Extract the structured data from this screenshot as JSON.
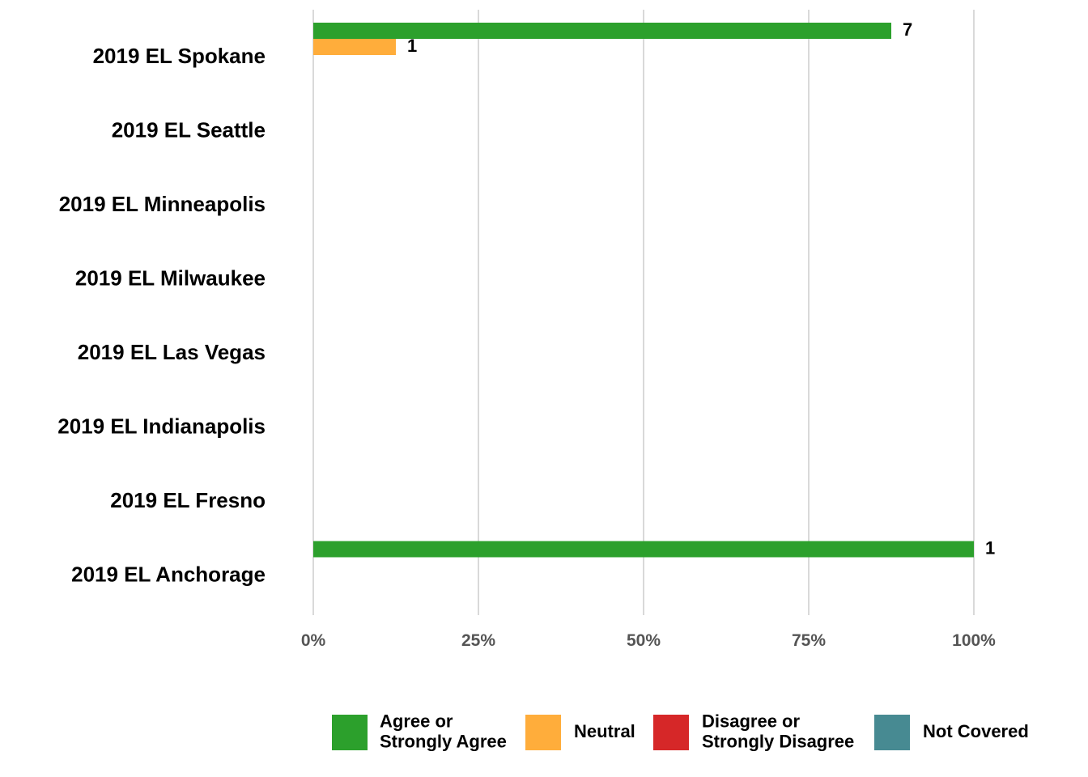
{
  "chart_data": {
    "type": "bar",
    "orientation": "horizontal",
    "stacking": "grouped",
    "title": "",
    "xlabel": "",
    "ylabel": "",
    "xlim": [
      0,
      100
    ],
    "x_ticks": [
      0,
      25,
      50,
      75,
      100
    ],
    "x_tick_labels": [
      "0%",
      "25%",
      "50%",
      "75%",
      "100%"
    ],
    "grid": "vertical",
    "legend_position": "bottom",
    "categories": [
      "2019 EL Spokane",
      "2019 EL Seattle",
      "2019 EL Minneapolis",
      "2019 EL Milwaukee",
      "2019 EL Las Vegas",
      "2019 EL Indianapolis",
      "2019 EL Fresno",
      "2019 EL Anchorage"
    ],
    "series": [
      {
        "name": "Agree or Strongly Agree",
        "legend_lines": [
          "Agree or",
          "Strongly Agree"
        ],
        "color": "#2ca02c",
        "values": [
          87.5,
          null,
          null,
          null,
          null,
          null,
          null,
          100
        ],
        "counts": [
          "7",
          null,
          null,
          null,
          null,
          null,
          null,
          "1"
        ]
      },
      {
        "name": "Neutral",
        "legend_lines": [
          "Neutral"
        ],
        "color": "#ffad3b",
        "values": [
          12.5,
          null,
          null,
          null,
          null,
          null,
          null,
          null
        ],
        "counts": [
          "1",
          null,
          null,
          null,
          null,
          null,
          null,
          null
        ]
      },
      {
        "name": "Disagree or Strongly Disagree",
        "legend_lines": [
          "Disagree or",
          "Strongly Disagree"
        ],
        "color": "#d62728",
        "values": [
          null,
          null,
          null,
          null,
          null,
          null,
          null,
          null
        ],
        "counts": [
          null,
          null,
          null,
          null,
          null,
          null,
          null,
          null
        ]
      },
      {
        "name": "Not Covered",
        "legend_lines": [
          "Not Covered"
        ],
        "color": "#478a92",
        "values": [
          null,
          null,
          null,
          null,
          null,
          null,
          null,
          null
        ],
        "counts": [
          null,
          null,
          null,
          null,
          null,
          null,
          null,
          null
        ]
      }
    ]
  }
}
